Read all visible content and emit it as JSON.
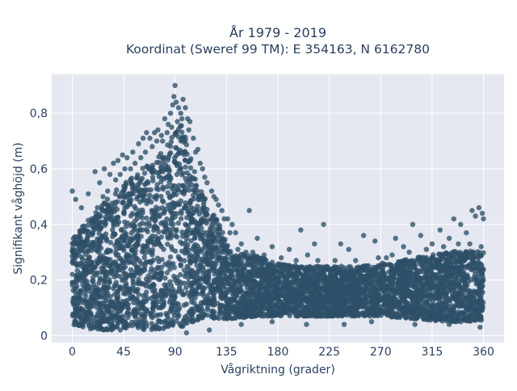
{
  "chart_data": {
    "type": "scatter",
    "title_line1": "År 1979 - 2019",
    "title_line2": "Koordinat (Sweref 99 TM): E 354163, N 6162780",
    "xlabel": "Vågriktning (grader)",
    "ylabel": "Signifikant våghöjd (m)",
    "xlim": [
      -18,
      378
    ],
    "ylim": [
      -0.025,
      0.94
    ],
    "x_ticks": [
      {
        "value": 0,
        "label": "0"
      },
      {
        "value": 45,
        "label": "45"
      },
      {
        "value": 90,
        "label": "90"
      },
      {
        "value": 135,
        "label": "135"
      },
      {
        "value": 180,
        "label": "180"
      },
      {
        "value": 225,
        "label": "225"
      },
      {
        "value": 270,
        "label": "270"
      },
      {
        "value": 315,
        "label": "315"
      },
      {
        "value": 360,
        "label": "360"
      }
    ],
    "y_ticks": [
      {
        "value": 0,
        "label": "0"
      },
      {
        "value": 0.2,
        "label": "0,2"
      },
      {
        "value": 0.4,
        "label": "0,4"
      },
      {
        "value": 0.6,
        "label": "0,6"
      },
      {
        "value": 0.8,
        "label": "0,8"
      }
    ],
    "grid": true,
    "marker_color": "#2e5068",
    "background_color": "#e5e8f1",
    "envelope": {
      "x": [
        0,
        10,
        20,
        30,
        40,
        50,
        60,
        70,
        80,
        90,
        95,
        100,
        105,
        110,
        120,
        130,
        135,
        140,
        160,
        180,
        200,
        225,
        250,
        270,
        300,
        330,
        345,
        360
      ],
      "upper": [
        0.36,
        0.4,
        0.44,
        0.49,
        0.53,
        0.56,
        0.6,
        0.63,
        0.67,
        0.74,
        0.76,
        0.72,
        0.62,
        0.55,
        0.46,
        0.4,
        0.34,
        0.3,
        0.29,
        0.26,
        0.25,
        0.25,
        0.25,
        0.26,
        0.28,
        0.3,
        0.31,
        0.3
      ],
      "lower": [
        0.04,
        0.03,
        0.02,
        0.02,
        0.02,
        0.02,
        0.02,
        0.02,
        0.02,
        0.03,
        0.03,
        0.04,
        0.05,
        0.05,
        0.06,
        0.06,
        0.06,
        0.06,
        0.07,
        0.07,
        0.07,
        0.07,
        0.07,
        0.07,
        0.06,
        0.05,
        0.05,
        0.05
      ]
    },
    "outliers": [
      [
        0,
        0.52
      ],
      [
        3,
        0.49
      ],
      [
        8,
        0.46
      ],
      [
        14,
        0.51
      ],
      [
        20,
        0.59
      ],
      [
        24,
        0.55
      ],
      [
        28,
        0.6
      ],
      [
        33,
        0.58
      ],
      [
        36,
        0.62
      ],
      [
        40,
        0.63
      ],
      [
        44,
        0.65
      ],
      [
        48,
        0.64
      ],
      [
        53,
        0.66
      ],
      [
        58,
        0.69
      ],
      [
        62,
        0.71
      ],
      [
        65,
        0.73
      ],
      [
        68,
        0.71
      ],
      [
        72,
        0.73
      ],
      [
        75,
        0.74
      ],
      [
        78,
        0.72
      ],
      [
        81,
        0.78
      ],
      [
        84,
        0.76
      ],
      [
        86,
        0.8
      ],
      [
        88,
        0.83
      ],
      [
        89,
        0.86
      ],
      [
        90,
        0.9
      ],
      [
        91,
        0.84
      ],
      [
        93,
        0.82
      ],
      [
        95,
        0.8
      ],
      [
        97,
        0.85
      ],
      [
        99,
        0.82
      ],
      [
        101,
        0.78
      ],
      [
        103,
        0.77
      ],
      [
        106,
        0.71
      ],
      [
        110,
        0.67
      ],
      [
        114,
        0.6
      ],
      [
        118,
        0.55
      ],
      [
        122,
        0.52
      ],
      [
        126,
        0.49
      ],
      [
        131,
        0.45
      ],
      [
        136,
        0.42
      ],
      [
        140,
        0.4
      ],
      [
        143,
        0.37
      ],
      [
        148,
        0.33
      ],
      [
        155,
        0.45
      ],
      [
        162,
        0.35
      ],
      [
        175,
        0.32
      ],
      [
        190,
        0.31
      ],
      [
        200,
        0.38
      ],
      [
        206,
        0.29
      ],
      [
        212,
        0.33
      ],
      [
        220,
        0.4
      ],
      [
        235,
        0.33
      ],
      [
        242,
        0.31
      ],
      [
        255,
        0.36
      ],
      [
        265,
        0.34
      ],
      [
        275,
        0.28
      ],
      [
        283,
        0.35
      ],
      [
        290,
        0.32
      ],
      [
        298,
        0.4
      ],
      [
        305,
        0.36
      ],
      [
        315,
        0.33
      ],
      [
        322,
        0.38
      ],
      [
        330,
        0.35
      ],
      [
        334,
        0.42
      ],
      [
        340,
        0.4
      ],
      [
        345,
        0.37
      ],
      [
        350,
        0.45
      ],
      [
        353,
        0.43
      ],
      [
        356,
        0.46
      ],
      [
        359,
        0.44
      ],
      [
        360,
        0.42
      ],
      [
        100,
        0.01
      ],
      [
        120,
        0.02
      ],
      [
        148,
        0.04
      ],
      [
        175,
        0.05
      ],
      [
        205,
        0.04
      ],
      [
        238,
        0.04
      ],
      [
        262,
        0.05
      ],
      [
        300,
        0.04
      ],
      [
        330,
        0.04
      ],
      [
        357,
        0.03
      ]
    ],
    "noise_points": [
      [
        4,
        0.33
      ],
      [
        11,
        0.38
      ],
      [
        17,
        0.42
      ],
      [
        22,
        0.46
      ],
      [
        27,
        0.5
      ],
      [
        31,
        0.52
      ],
      [
        38,
        0.56
      ],
      [
        42,
        0.58
      ],
      [
        46,
        0.6
      ],
      [
        51,
        0.6
      ],
      [
        55,
        0.62
      ],
      [
        60,
        0.64
      ],
      [
        64,
        0.66
      ],
      [
        70,
        0.68
      ],
      [
        74,
        0.7
      ],
      [
        79,
        0.7
      ],
      [
        83,
        0.73
      ],
      [
        87,
        0.75
      ],
      [
        92,
        0.77
      ],
      [
        96,
        0.78
      ],
      [
        102,
        0.74
      ],
      [
        108,
        0.66
      ],
      [
        112,
        0.62
      ],
      [
        116,
        0.57
      ],
      [
        124,
        0.5
      ],
      [
        128,
        0.47
      ],
      [
        133,
        0.42
      ],
      [
        138,
        0.37
      ],
      [
        145,
        0.31
      ],
      [
        152,
        0.3
      ],
      [
        158,
        0.3
      ],
      [
        168,
        0.29
      ],
      [
        183,
        0.28
      ],
      [
        196,
        0.27
      ],
      [
        215,
        0.27
      ],
      [
        230,
        0.27
      ],
      [
        248,
        0.27
      ],
      [
        268,
        0.28
      ],
      [
        280,
        0.29
      ],
      [
        295,
        0.3
      ],
      [
        310,
        0.31
      ],
      [
        325,
        0.32
      ],
      [
        338,
        0.33
      ],
      [
        348,
        0.33
      ],
      [
        358,
        0.32
      ]
    ]
  }
}
